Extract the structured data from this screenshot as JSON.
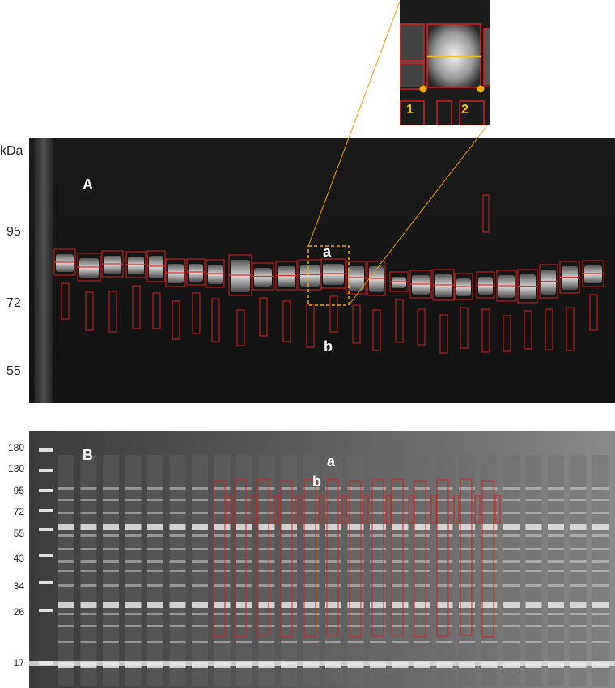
{
  "panel_a": {
    "unit_label": "kDa",
    "panel_label": "A",
    "marker_a": "a",
    "marker_b": "b",
    "mw_markers": [
      "95",
      "72",
      "55"
    ]
  },
  "panel_b": {
    "panel_label": "B",
    "marker_a": "a",
    "marker_b": "b",
    "mw_markers": [
      "180",
      "130",
      "95",
      "72",
      "55",
      "43",
      "34",
      "26",
      "17"
    ]
  },
  "inset": {
    "label_1": "1",
    "label_2": "2"
  },
  "colors": {
    "box": "#d42020",
    "highlight": "#f5c400",
    "zoom_line": "#e8a000"
  }
}
